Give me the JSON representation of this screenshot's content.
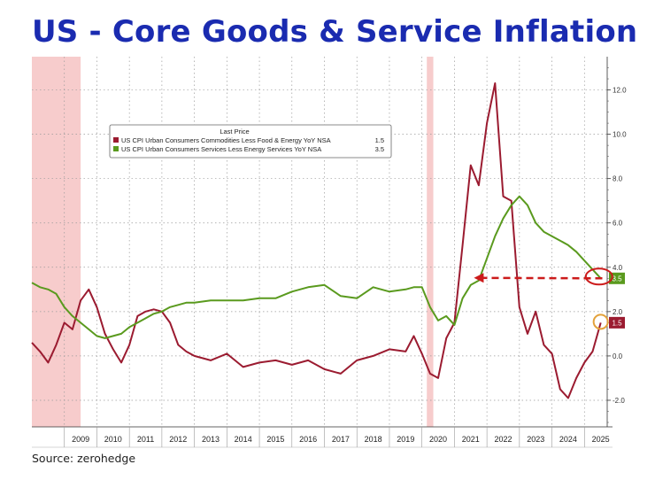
{
  "page": {
    "title": "US - Core Goods & Service Inflation",
    "source": "Source: zerohedge"
  },
  "colors": {
    "title": "#1a2bb0",
    "goods": "#9b1b30",
    "services": "#5a9a1e",
    "recession": "#f6c6c6",
    "arrow": "#cc1b1b",
    "circle_goods": "#e3a23b"
  },
  "chart_data": {
    "type": "line",
    "title": "US - Core Goods & Service Inflation",
    "xlabel": "",
    "ylabel": "",
    "xlim": [
      2008.0,
      2025.7
    ],
    "ylim": [
      -3.2,
      13.5
    ],
    "y_ticks": [
      -2.0,
      0.0,
      2.0,
      4.0,
      6.0,
      8.0,
      10.0,
      12.0
    ],
    "y_tick_labels": [
      "-2.0",
      "0.0",
      "2.0",
      "4.0",
      "6.0",
      "8.0",
      "10.0",
      "12.0"
    ],
    "x_tick_labels": [
      "2009",
      "2010",
      "2011",
      "2012",
      "2013",
      "2014",
      "2015",
      "2016",
      "2017",
      "2018",
      "2019",
      "2020",
      "2021",
      "2022",
      "2023",
      "2024",
      "2025"
    ],
    "grid": true,
    "legend": {
      "title": "Last Price",
      "position": "top-left"
    },
    "recessions": [
      [
        2008.0,
        2009.5
      ],
      [
        2020.15,
        2020.35
      ]
    ],
    "series": [
      {
        "name": "US CPI Urban Consumers Commodities Less Food & Energy YoY NSA",
        "last": "1.5",
        "color": "#9b1b30",
        "x": [
          2008.0,
          2008.25,
          2008.5,
          2008.75,
          2009.0,
          2009.25,
          2009.5,
          2009.75,
          2010.0,
          2010.25,
          2010.5,
          2010.75,
          2011.0,
          2011.25,
          2011.5,
          2011.75,
          2012.0,
          2012.25,
          2012.5,
          2012.75,
          2013.0,
          2013.5,
          2014.0,
          2014.5,
          2015.0,
          2015.5,
          2016.0,
          2016.5,
          2017.0,
          2017.5,
          2018.0,
          2018.5,
          2019.0,
          2019.5,
          2019.75,
          2020.0,
          2020.25,
          2020.5,
          2020.75,
          2021.0,
          2021.25,
          2021.5,
          2021.75,
          2022.0,
          2022.25,
          2022.5,
          2022.75,
          2023.0,
          2023.25,
          2023.5,
          2023.75,
          2024.0,
          2024.25,
          2024.5,
          2024.75,
          2025.0,
          2025.25,
          2025.5
        ],
        "y": [
          0.6,
          0.2,
          -0.3,
          0.5,
          1.5,
          1.2,
          2.5,
          3.0,
          2.2,
          1.0,
          0.3,
          -0.3,
          0.5,
          1.8,
          2.0,
          2.1,
          2.0,
          1.5,
          0.5,
          0.2,
          0.0,
          -0.2,
          0.1,
          -0.5,
          -0.3,
          -0.2,
          -0.4,
          -0.2,
          -0.6,
          -0.8,
          -0.2,
          0.0,
          0.3,
          0.2,
          0.9,
          0.1,
          -0.8,
          -1.0,
          0.8,
          1.5,
          5.0,
          8.6,
          7.7,
          10.5,
          12.3,
          7.2,
          7.0,
          2.2,
          1.0,
          2.0,
          0.5,
          0.1,
          -1.5,
          -1.9,
          -1.0,
          -0.3,
          0.2,
          1.5
        ]
      },
      {
        "name": "US CPI Urban Consumers Services Less Energy Services YoY NSA",
        "last": "3.5",
        "color": "#5a9a1e",
        "x": [
          2008.0,
          2008.25,
          2008.5,
          2008.75,
          2009.0,
          2009.25,
          2009.5,
          2009.75,
          2010.0,
          2010.25,
          2010.5,
          2010.75,
          2011.0,
          2011.25,
          2011.5,
          2011.75,
          2012.0,
          2012.25,
          2012.5,
          2012.75,
          2013.0,
          2013.5,
          2014.0,
          2014.5,
          2015.0,
          2015.5,
          2016.0,
          2016.5,
          2017.0,
          2017.5,
          2018.0,
          2018.5,
          2019.0,
          2019.5,
          2019.75,
          2020.0,
          2020.25,
          2020.5,
          2020.75,
          2021.0,
          2021.25,
          2021.5,
          2021.75,
          2022.0,
          2022.25,
          2022.5,
          2022.75,
          2023.0,
          2023.25,
          2023.5,
          2023.75,
          2024.0,
          2024.25,
          2024.5,
          2024.75,
          2025.0,
          2025.25,
          2025.5
        ],
        "y": [
          3.3,
          3.1,
          3.0,
          2.8,
          2.2,
          1.8,
          1.5,
          1.2,
          0.9,
          0.8,
          0.9,
          1.0,
          1.3,
          1.5,
          1.7,
          1.9,
          2.0,
          2.2,
          2.3,
          2.4,
          2.4,
          2.5,
          2.5,
          2.5,
          2.6,
          2.6,
          2.9,
          3.1,
          3.2,
          2.7,
          2.6,
          3.1,
          2.9,
          3.0,
          3.1,
          3.1,
          2.2,
          1.6,
          1.8,
          1.4,
          2.6,
          3.2,
          3.4,
          4.4,
          5.4,
          6.2,
          6.8,
          7.2,
          6.8,
          6.0,
          5.6,
          5.4,
          5.2,
          5.0,
          4.7,
          4.3,
          3.9,
          3.5
        ]
      }
    ]
  }
}
